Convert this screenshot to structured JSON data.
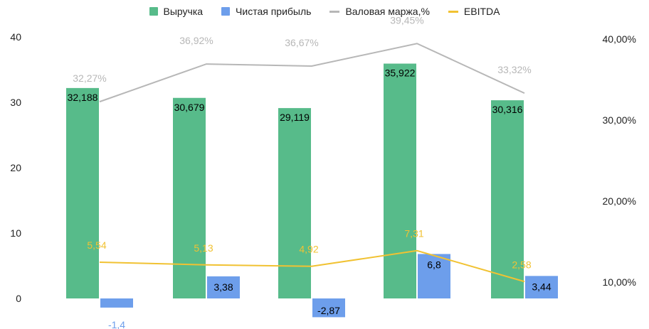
{
  "chart_data": {
    "type": "bar",
    "title": "",
    "xlabel": "",
    "ylabel": "",
    "categories": [
      "",
      "",
      "",
      "",
      ""
    ],
    "ylim": [
      0,
      40
    ],
    "y_ticks": [
      "0",
      "10",
      "20",
      "30",
      "40"
    ],
    "y2lim": [
      0.1,
      0.4
    ],
    "y2_ticks": [
      "10,00%",
      "20,00%",
      "30,00%",
      "40,00%"
    ],
    "grid": false,
    "legend_position": "top",
    "series": [
      {
        "name": "Выручка",
        "kind": "bar",
        "axis": "left",
        "color": "#57bb8a",
        "values": [
          32.188,
          30.679,
          29.119,
          35.922,
          30.316
        ],
        "labels": [
          "32,188",
          "30,679",
          "29,119",
          "35,922",
          "30,316"
        ],
        "label_color": "#000000"
      },
      {
        "name": "Чистая прибыль",
        "kind": "bar",
        "axis": "left",
        "color": "#6d9eeb",
        "values": [
          -1.4,
          3.38,
          -2.87,
          6.8,
          3.44
        ],
        "labels": [
          "-1,4",
          "3,38",
          "-2,87",
          "6,8",
          "3,44"
        ],
        "label_color": "#000000",
        "negative_label_color": "#6d9eeb"
      },
      {
        "name": "Валовая маржа,%",
        "kind": "line",
        "axis": "right",
        "color": "#b7b7b7",
        "values": [
          0.3227,
          0.3692,
          0.3667,
          0.3945,
          0.3332
        ],
        "labels": [
          "32,27%",
          "36,92%",
          "36,67%",
          "39,45%",
          "33,32%"
        ],
        "label_color": "#b7b7b7"
      },
      {
        "name": "EBITDA",
        "kind": "line",
        "axis": "left",
        "color": "#f1c232",
        "values": [
          5.54,
          5.13,
          4.92,
          7.31,
          2.58
        ],
        "labels": [
          "5,54",
          "5,13",
          "4,92",
          "7,31",
          "2,58"
        ],
        "label_color": "#f1c232"
      }
    ]
  }
}
